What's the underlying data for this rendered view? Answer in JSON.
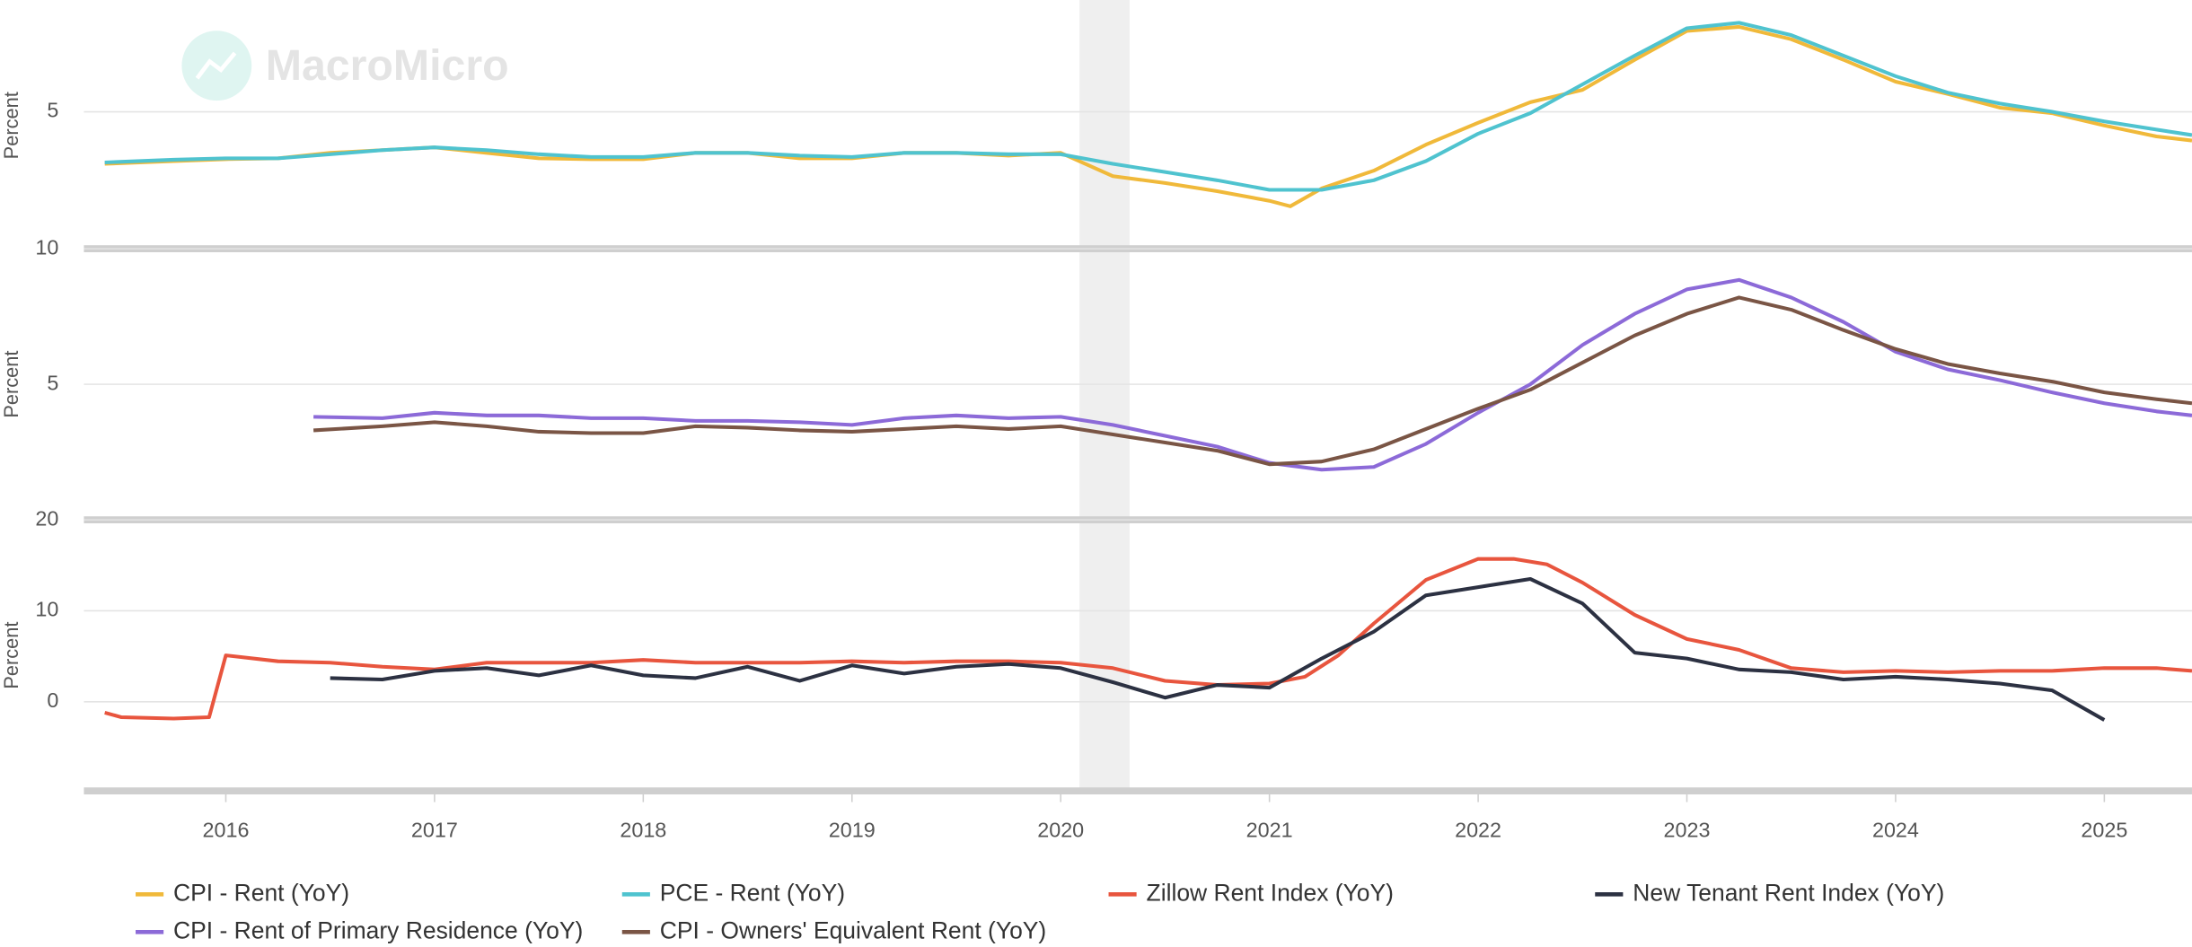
{
  "watermark": "MacroMicro",
  "shaded_range": [
    2020.09,
    2020.33
  ],
  "chart_data": [
    {
      "type": "line",
      "ylabel": "Percent",
      "xlim": [
        2015.32,
        2025.42
      ],
      "ylim": [
        0,
        9
      ],
      "yticks": [
        5
      ],
      "grid": true,
      "series": [
        {
          "name": "CPI - Rent (YoY)",
          "color": "#f0b93a",
          "x": [
            2015.42,
            2015.75,
            2016.0,
            2016.25,
            2016.5,
            2016.75,
            2017.0,
            2017.25,
            2017.5,
            2017.75,
            2018.0,
            2018.25,
            2018.5,
            2018.75,
            2019.0,
            2019.25,
            2019.5,
            2019.75,
            2020.0,
            2020.25,
            2020.5,
            2020.75,
            2021.0,
            2021.1,
            2021.25,
            2021.5,
            2021.75,
            2022.0,
            2022.25,
            2022.5,
            2022.75,
            2023.0,
            2023.25,
            2023.5,
            2023.75,
            2024.0,
            2024.25,
            2024.5,
            2024.75,
            2025.0,
            2025.25,
            2025.42
          ],
          "values": [
            3.1,
            3.2,
            3.27,
            3.3,
            3.5,
            3.6,
            3.7,
            3.5,
            3.3,
            3.27,
            3.27,
            3.5,
            3.5,
            3.3,
            3.3,
            3.5,
            3.5,
            3.4,
            3.5,
            2.65,
            2.4,
            2.1,
            1.75,
            1.55,
            2.2,
            2.85,
            3.8,
            4.6,
            5.35,
            5.8,
            6.9,
            7.95,
            8.1,
            7.65,
            6.9,
            6.1,
            5.65,
            5.15,
            4.95,
            4.5,
            4.1,
            3.95
          ]
        },
        {
          "name": "PCE - Rent (YoY)",
          "color": "#4fc3cf",
          "x": [
            2015.42,
            2015.75,
            2016.0,
            2016.25,
            2016.5,
            2016.75,
            2017.0,
            2017.25,
            2017.5,
            2017.75,
            2018.0,
            2018.25,
            2018.5,
            2018.75,
            2019.0,
            2019.25,
            2019.5,
            2019.75,
            2020.0,
            2020.25,
            2020.5,
            2020.75,
            2021.0,
            2021.25,
            2021.5,
            2021.75,
            2022.0,
            2022.25,
            2022.5,
            2022.75,
            2023.0,
            2023.25,
            2023.5,
            2023.75,
            2024.0,
            2024.25,
            2024.5,
            2024.75,
            2025.0,
            2025.25,
            2025.42
          ],
          "values": [
            3.15,
            3.25,
            3.3,
            3.3,
            3.45,
            3.6,
            3.7,
            3.6,
            3.45,
            3.35,
            3.35,
            3.5,
            3.5,
            3.4,
            3.35,
            3.5,
            3.5,
            3.45,
            3.45,
            3.1,
            2.8,
            2.5,
            2.15,
            2.15,
            2.5,
            3.2,
            4.2,
            4.95,
            6.0,
            7.05,
            8.05,
            8.25,
            7.8,
            7.05,
            6.3,
            5.7,
            5.3,
            5.0,
            4.65,
            4.35,
            4.15
          ]
        }
      ]
    },
    {
      "type": "line",
      "ylabel": "Percent",
      "xlim": [
        2015.32,
        2025.42
      ],
      "ylim": [
        0,
        10
      ],
      "yticks": [
        5,
        10
      ],
      "grid": true,
      "series": [
        {
          "name": "CPI - Rent of Primary Residence (YoY)",
          "color": "#8c6ad8",
          "x": [
            2016.42,
            2016.75,
            2017.0,
            2017.25,
            2017.5,
            2017.75,
            2018.0,
            2018.25,
            2018.5,
            2018.75,
            2019.0,
            2019.25,
            2019.5,
            2019.75,
            2020.0,
            2020.25,
            2020.5,
            2020.75,
            2021.0,
            2021.25,
            2021.5,
            2021.75,
            2022.0,
            2022.25,
            2022.5,
            2022.75,
            2023.0,
            2023.25,
            2023.5,
            2023.75,
            2024.0,
            2024.25,
            2024.5,
            2024.75,
            2025.0,
            2025.25,
            2025.42
          ],
          "values": [
            3.8,
            3.75,
            3.95,
            3.85,
            3.85,
            3.75,
            3.75,
            3.65,
            3.65,
            3.6,
            3.5,
            3.75,
            3.85,
            3.75,
            3.8,
            3.5,
            3.1,
            2.7,
            2.1,
            1.85,
            1.95,
            2.8,
            3.95,
            5.0,
            6.45,
            7.6,
            8.5,
            8.85,
            8.2,
            7.3,
            6.2,
            5.55,
            5.15,
            4.7,
            4.3,
            4.0,
            3.85
          ]
        },
        {
          "name": "CPI - Owners' Equivalent Rent (YoY)",
          "color": "#7a5545",
          "x": [
            2016.42,
            2016.75,
            2017.0,
            2017.25,
            2017.5,
            2017.75,
            2018.0,
            2018.25,
            2018.5,
            2018.75,
            2019.0,
            2019.25,
            2019.5,
            2019.75,
            2020.0,
            2020.25,
            2020.5,
            2020.75,
            2021.0,
            2021.25,
            2021.5,
            2021.75,
            2022.0,
            2022.25,
            2022.5,
            2022.75,
            2023.0,
            2023.25,
            2023.5,
            2023.75,
            2024.0,
            2024.25,
            2024.5,
            2024.75,
            2025.0,
            2025.25,
            2025.42
          ],
          "values": [
            3.3,
            3.45,
            3.6,
            3.45,
            3.25,
            3.2,
            3.2,
            3.45,
            3.4,
            3.3,
            3.25,
            3.35,
            3.45,
            3.35,
            3.45,
            3.15,
            2.85,
            2.55,
            2.05,
            2.15,
            2.6,
            3.35,
            4.1,
            4.8,
            5.8,
            6.8,
            7.6,
            8.2,
            7.75,
            7.0,
            6.3,
            5.75,
            5.4,
            5.1,
            4.7,
            4.45,
            4.3
          ]
        }
      ]
    },
    {
      "type": "line",
      "ylabel": "Percent",
      "xlim": [
        2015.32,
        2025.42
      ],
      "ylim": [
        -9.8,
        20
      ],
      "yticks": [
        0,
        10,
        20
      ],
      "grid": true,
      "xticks": [
        2016,
        2017,
        2018,
        2019,
        2020,
        2021,
        2022,
        2023,
        2024,
        2025
      ],
      "series": [
        {
          "name": "Zillow Rent Index (YoY)",
          "color": "#e8553e",
          "x": [
            2015.42,
            2015.5,
            2015.75,
            2015.92,
            2016.0,
            2016.25,
            2016.5,
            2016.75,
            2017.0,
            2017.25,
            2017.5,
            2017.75,
            2018.0,
            2018.25,
            2018.5,
            2018.75,
            2019.0,
            2019.25,
            2019.5,
            2019.75,
            2020.0,
            2020.25,
            2020.5,
            2020.75,
            2021.0,
            2021.17,
            2021.33,
            2021.5,
            2021.75,
            2022.0,
            2022.17,
            2022.33,
            2022.5,
            2022.75,
            2023.0,
            2023.25,
            2023.5,
            2023.75,
            2024.0,
            2024.25,
            2024.5,
            2024.75,
            2025.0,
            2025.25,
            2025.42
          ],
          "values": [
            -1.2,
            -1.7,
            -1.85,
            -1.7,
            5.1,
            4.45,
            4.3,
            3.85,
            3.55,
            4.3,
            4.3,
            4.3,
            4.6,
            4.3,
            4.3,
            4.3,
            4.45,
            4.3,
            4.45,
            4.45,
            4.3,
            3.7,
            2.3,
            1.85,
            2.0,
            2.75,
            5.1,
            8.6,
            13.4,
            15.7,
            15.7,
            15.1,
            13.1,
            9.55,
            6.9,
            5.7,
            3.7,
            3.25,
            3.4,
            3.25,
            3.4,
            3.4,
            3.7,
            3.7,
            3.4
          ]
        },
        {
          "name": "New Tenant Rent Index (YoY)",
          "color": "#2c3142",
          "x": [
            2016.5,
            2016.75,
            2017.0,
            2017.25,
            2017.5,
            2017.75,
            2018.0,
            2018.25,
            2018.5,
            2018.75,
            2019.0,
            2019.25,
            2019.5,
            2019.75,
            2020.0,
            2020.25,
            2020.5,
            2020.75,
            2021.0,
            2021.25,
            2021.5,
            2021.75,
            2022.0,
            2022.25,
            2022.5,
            2022.75,
            2023.0,
            2023.25,
            2023.5,
            2023.75,
            2024.0,
            2024.25,
            2024.5,
            2024.75,
            2025.0
          ],
          "values": [
            2.6,
            2.45,
            3.4,
            3.7,
            2.9,
            4.0,
            2.9,
            2.6,
            3.85,
            2.3,
            4.0,
            3.1,
            3.85,
            4.15,
            3.7,
            2.15,
            0.45,
            1.85,
            1.55,
            4.75,
            7.7,
            11.7,
            12.6,
            13.5,
            10.8,
            5.4,
            4.75,
            3.55,
            3.25,
            2.45,
            2.75,
            2.45,
            2.0,
            1.25,
            -2.0
          ]
        }
      ]
    }
  ]
}
